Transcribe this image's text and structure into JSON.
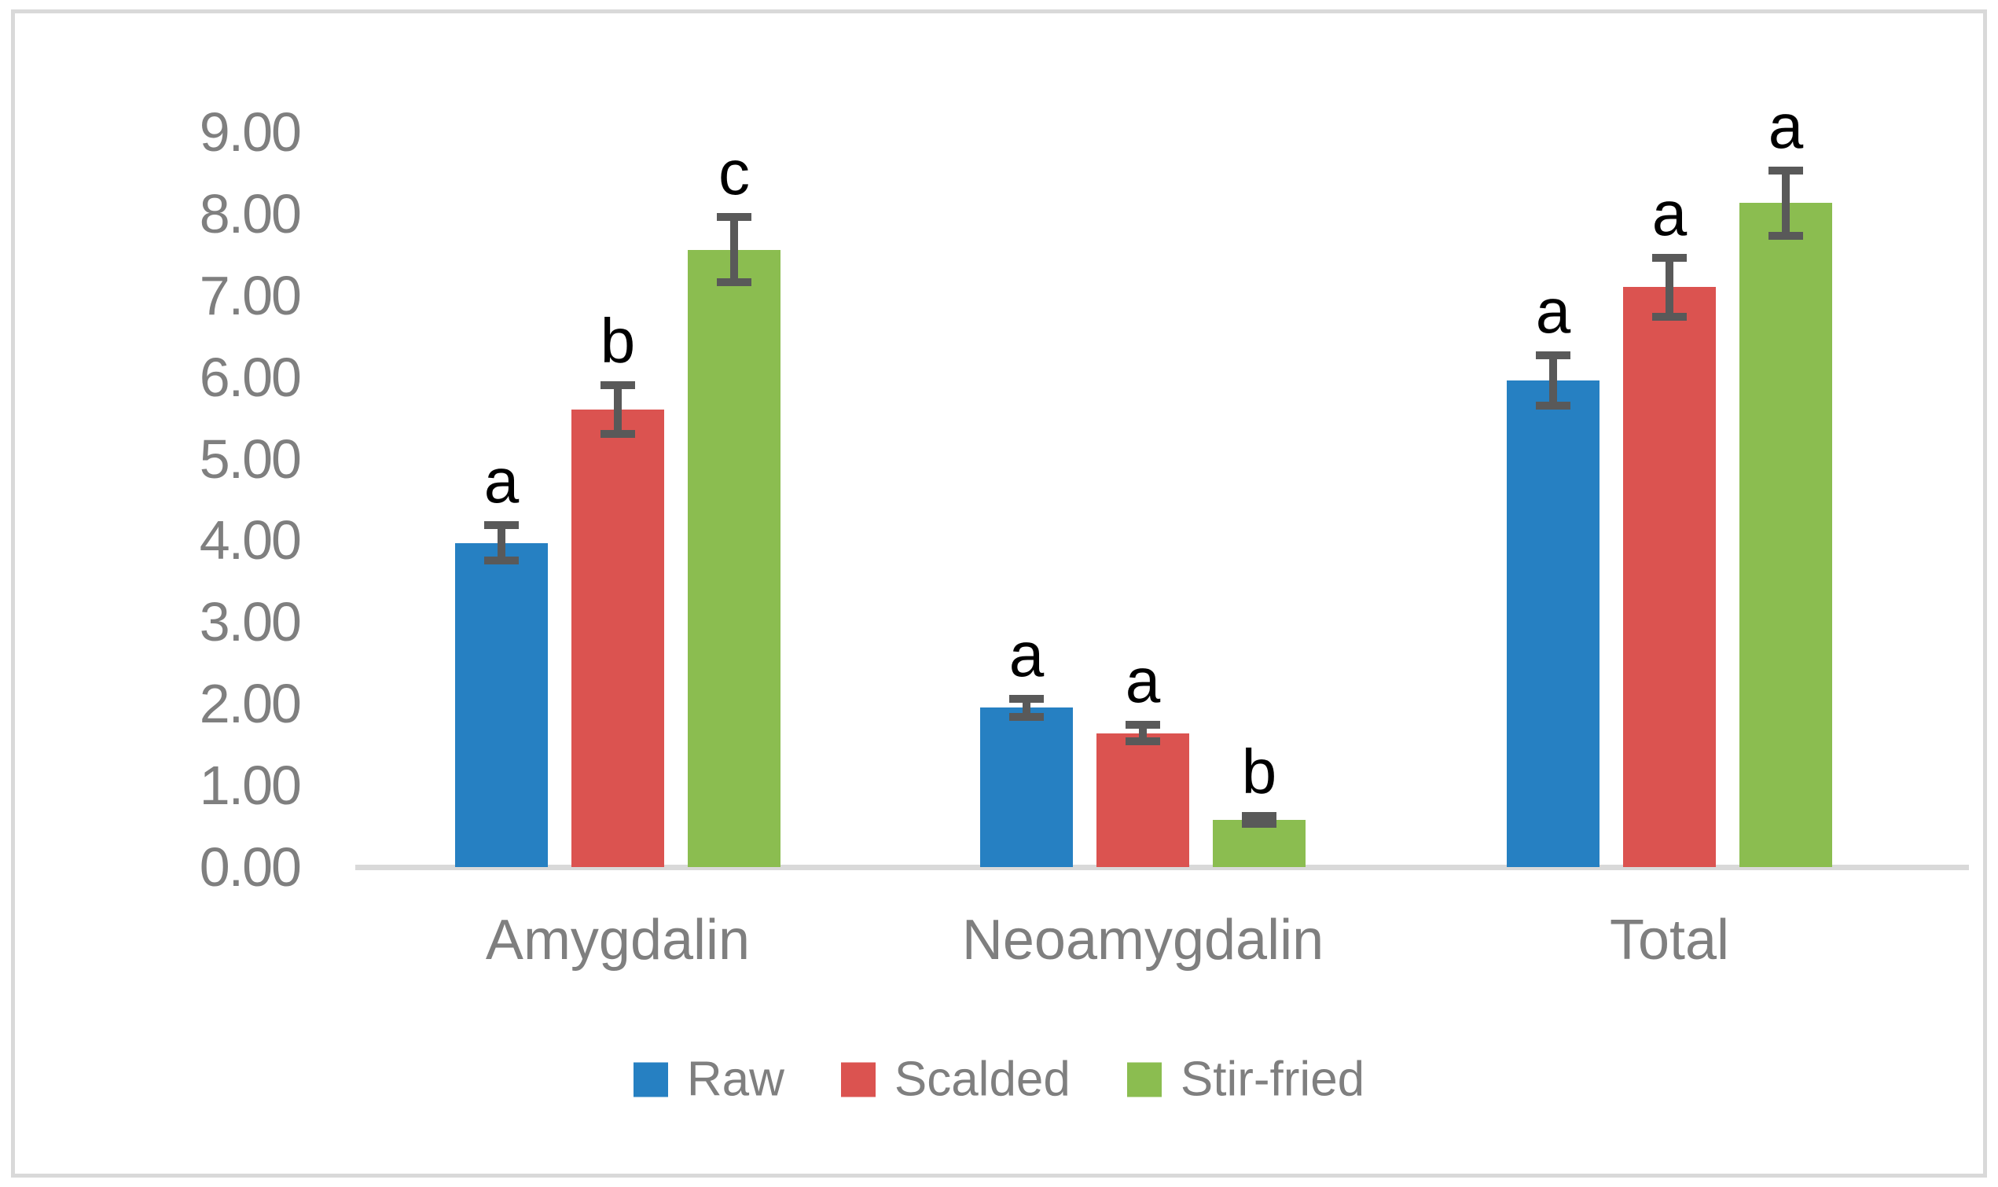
{
  "figure": {
    "background": "#FFFFFF",
    "border_color": "#D9D9D9"
  },
  "chart_data": {
    "type": "bar",
    "title": "",
    "xlabel": "",
    "ylabel": "",
    "categories": [
      "Amygdalin",
      "Neoamygdalin",
      "Total"
    ],
    "series": [
      {
        "name": "Raw",
        "color": "#2680C2",
        "values": [
          3.97,
          1.95,
          5.96
        ],
        "errors": [
          0.22,
          0.11,
          0.31
        ],
        "sig_letters": [
          "a",
          "a",
          "a"
        ]
      },
      {
        "name": "Scalded",
        "color": "#DB5350",
        "values": [
          5.6,
          1.64,
          7.1
        ],
        "errors": [
          0.3,
          0.1,
          0.36
        ],
        "sig_letters": [
          "b",
          "a",
          "a"
        ]
      },
      {
        "name": "Stir-fried",
        "color": "#8BBD50",
        "values": [
          7.56,
          0.58,
          8.13
        ],
        "errors": [
          0.4,
          0.05,
          0.4
        ],
        "sig_letters": [
          "c",
          "b",
          "a"
        ]
      }
    ],
    "ylim": [
      0,
      9
    ],
    "ytick_step": 1,
    "ytick_labels": [
      "0.00",
      "1.00",
      "2.00",
      "3.00",
      "4.00",
      "5.00",
      "6.00",
      "7.00",
      "8.00",
      "9.00"
    ],
    "grid": false,
    "legend_position": "bottom",
    "colors": {
      "error_bar": "#595959",
      "axis_line": "#D9D9D9",
      "tick_text": "#7F7F7F",
      "category_text": "#7F7F7F",
      "legend_text": "#7F7F7F",
      "sig_letter": "#000000"
    }
  }
}
